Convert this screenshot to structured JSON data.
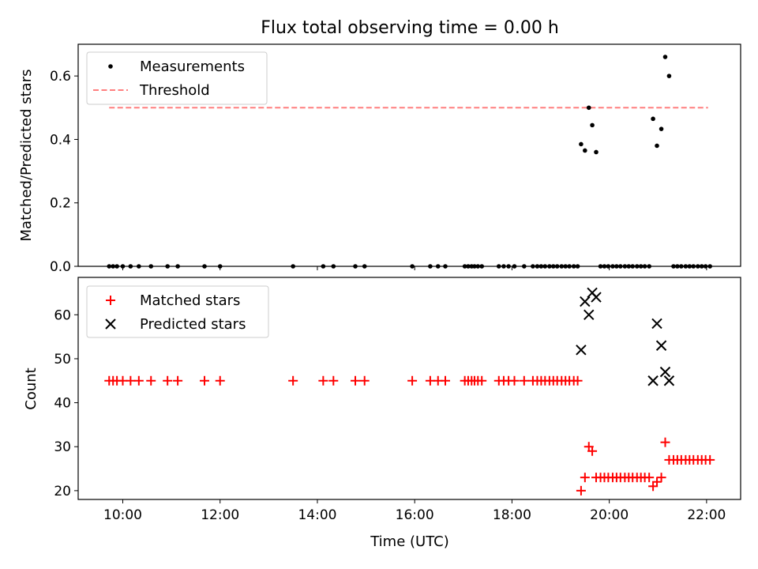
{
  "title": "Flux total observing time = 0.00 h",
  "chart_data": [
    {
      "type": "scatter",
      "ylabel": "Matched/Predicted stars",
      "xlim": [
        9.083,
        22.7
      ],
      "ylim": [
        0,
        0.7
      ],
      "yticks": [
        0.0,
        0.2,
        0.4,
        0.6
      ],
      "ytick_labels": [
        "0.0",
        "0.2",
        "0.4",
        "0.6"
      ],
      "legend_position": "upper-left",
      "legend": [
        "Measurements",
        "Threshold"
      ],
      "threshold": {
        "name": "Threshold",
        "value": 0.5,
        "x_range": [
          9.72,
          22.03
        ],
        "color": "#ff7f7f"
      },
      "series": [
        {
          "name": "Measurements",
          "color": "#000000",
          "x": [
            9.72,
            9.8,
            9.88,
            10.0,
            10.16,
            10.33,
            10.58,
            10.92,
            11.13,
            11.68,
            12.0,
            13.5,
            14.12,
            14.33,
            14.78,
            14.97,
            15.95,
            16.32,
            16.48,
            16.63,
            17.03,
            17.1,
            17.17,
            17.23,
            17.3,
            17.38,
            17.73,
            17.83,
            17.93,
            18.05,
            18.25,
            18.43,
            18.52,
            18.6,
            18.68,
            18.77,
            18.85,
            18.93,
            19.02,
            19.1,
            19.18,
            19.27,
            19.35,
            19.42,
            19.5,
            19.58,
            19.65,
            19.73,
            19.82,
            19.9,
            19.98,
            20.07,
            20.15,
            20.23,
            20.32,
            20.4,
            20.48,
            20.57,
            20.65,
            20.73,
            20.82,
            20.9,
            20.98,
            21.07,
            21.15,
            21.23,
            21.32,
            21.4,
            21.48,
            21.57,
            21.65,
            21.73,
            21.82,
            21.9,
            21.98,
            22.07
          ],
          "y": [
            0,
            0,
            0,
            0,
            0,
            0,
            0,
            0,
            0,
            0,
            0,
            0,
            0,
            0,
            0,
            0,
            0,
            0,
            0,
            0,
            0,
            0,
            0,
            0,
            0,
            0,
            0,
            0,
            0,
            0,
            0,
            0,
            0,
            0,
            0,
            0,
            0,
            0,
            0,
            0,
            0,
            0,
            0,
            0.385,
            0.365,
            0.5,
            0.445,
            0.36,
            0,
            0,
            0,
            0,
            0,
            0,
            0,
            0,
            0,
            0,
            0,
            0,
            0,
            0.465,
            0.38,
            0.433,
            0.66,
            0.6,
            0,
            0,
            0,
            0,
            0,
            0,
            0,
            0,
            0,
            0
          ]
        }
      ]
    },
    {
      "type": "scatter",
      "ylabel": "Count",
      "xlabel": "Time (UTC)",
      "xlim": [
        9.083,
        22.7
      ],
      "ylim": [
        18,
        68.5
      ],
      "xticks": [
        10,
        12,
        14,
        16,
        18,
        20,
        22
      ],
      "xtick_labels": [
        "10:00",
        "12:00",
        "14:00",
        "16:00",
        "18:00",
        "20:00",
        "22:00"
      ],
      "yticks": [
        20,
        30,
        40,
        50,
        60
      ],
      "ytick_labels": [
        "20",
        "30",
        "40",
        "50",
        "60"
      ],
      "legend_position": "upper-left",
      "legend": [
        "Matched stars",
        "Predicted stars"
      ],
      "series": [
        {
          "name": "Matched stars",
          "marker": "+",
          "color": "#ff0000",
          "x": [
            9.72,
            9.8,
            9.88,
            10.0,
            10.16,
            10.33,
            10.58,
            10.92,
            11.13,
            11.68,
            12.0,
            13.5,
            14.12,
            14.33,
            14.78,
            14.97,
            15.95,
            16.32,
            16.48,
            16.63,
            17.03,
            17.1,
            17.17,
            17.23,
            17.3,
            17.38,
            17.73,
            17.83,
            17.93,
            18.05,
            18.25,
            18.43,
            18.52,
            18.6,
            18.68,
            18.77,
            18.85,
            18.93,
            19.02,
            19.1,
            19.18,
            19.27,
            19.35,
            19.42,
            19.5,
            19.58,
            19.65,
            19.73,
            19.82,
            19.9,
            19.98,
            20.07,
            20.15,
            20.23,
            20.32,
            20.4,
            20.48,
            20.57,
            20.65,
            20.73,
            20.82,
            20.9,
            20.98,
            21.07,
            21.15,
            21.23,
            21.32,
            21.4,
            21.48,
            21.57,
            21.65,
            21.73,
            21.82,
            21.9,
            21.98,
            22.07
          ],
          "y": [
            45,
            45,
            45,
            45,
            45,
            45,
            45,
            45,
            45,
            45,
            45,
            45,
            45,
            45,
            45,
            45,
            45,
            45,
            45,
            45,
            45,
            45,
            45,
            45,
            45,
            45,
            45,
            45,
            45,
            45,
            45,
            45,
            45,
            45,
            45,
            45,
            45,
            45,
            45,
            45,
            45,
            45,
            45,
            20,
            23,
            30,
            29,
            23,
            23,
            23,
            23,
            23,
            23,
            23,
            23,
            23,
            23,
            23,
            23,
            23,
            23,
            21,
            22,
            23,
            31,
            27,
            27,
            27,
            27,
            27,
            27,
            27,
            27,
            27,
            27,
            27
          ]
        },
        {
          "name": "Predicted stars",
          "marker": "x",
          "color": "#000000",
          "x": [
            19.42,
            19.5,
            19.58,
            19.65,
            19.73,
            20.9,
            20.98,
            21.07,
            21.15,
            21.23
          ],
          "y": [
            52,
            63,
            60,
            65,
            64,
            45,
            58,
            53,
            47,
            45
          ]
        }
      ]
    }
  ]
}
